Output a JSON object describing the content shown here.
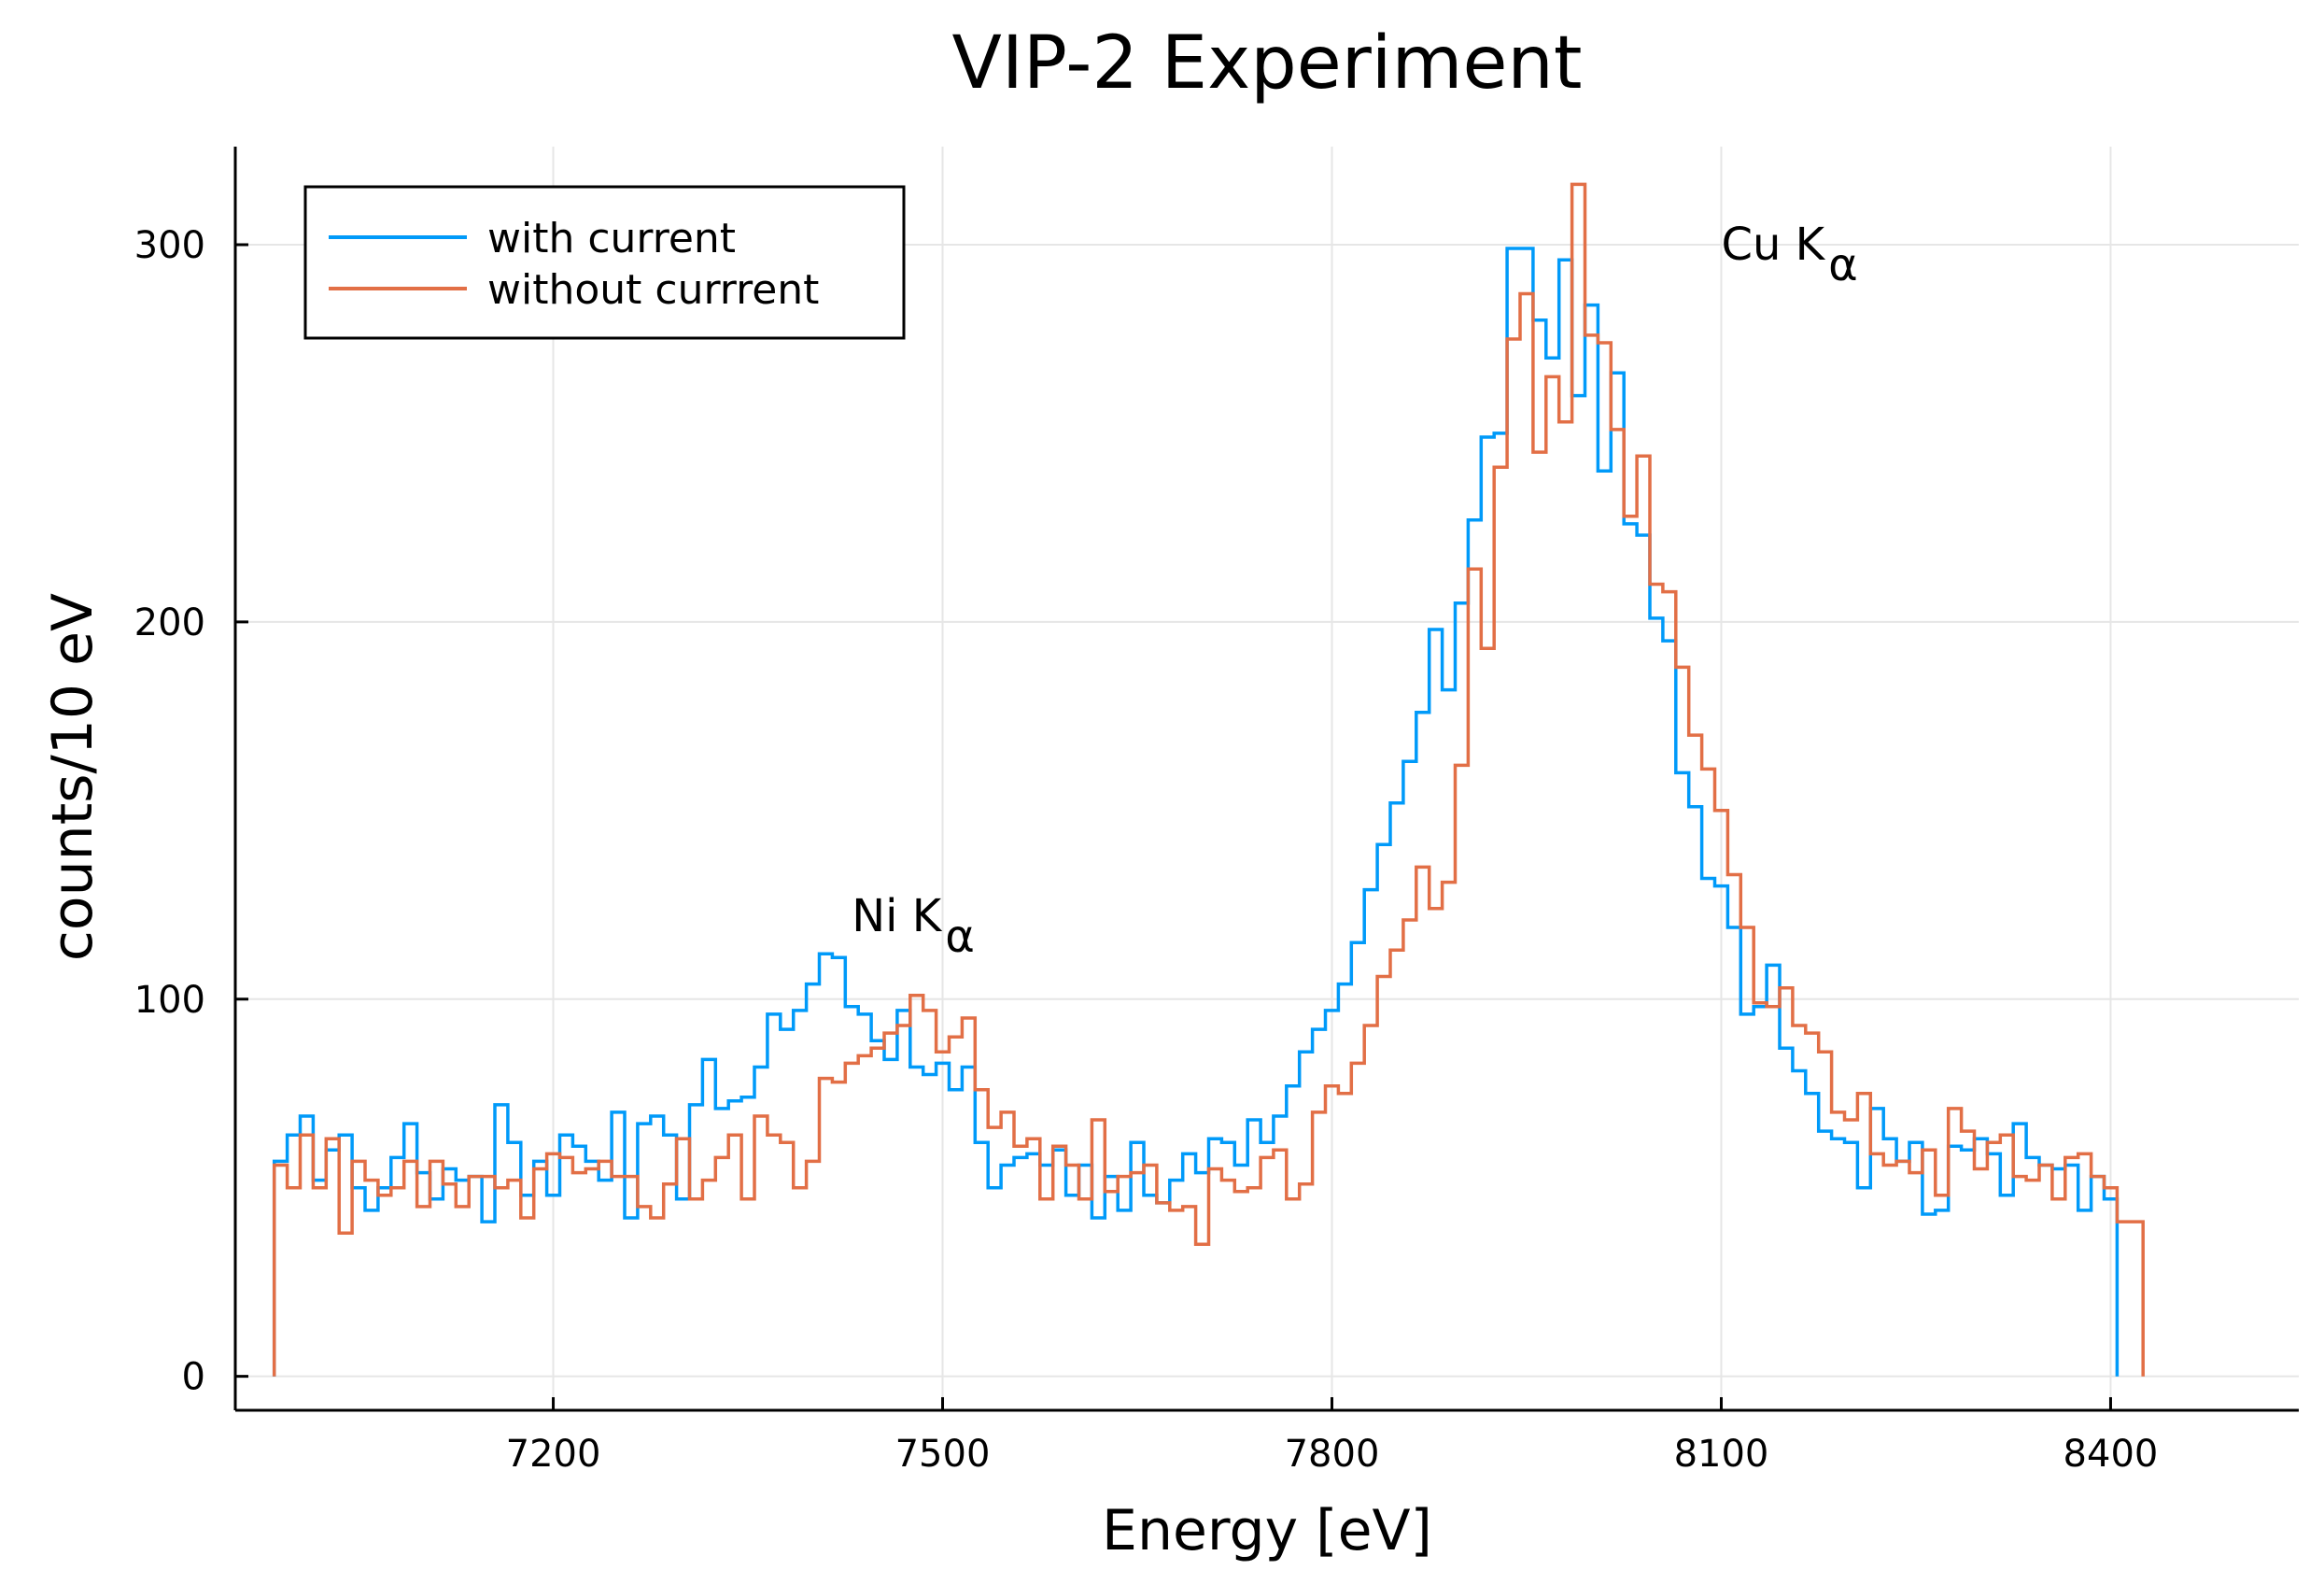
{
  "colors": {
    "with_current": "#009af9",
    "without_current": "#e26f46",
    "grid": "#e6e6e6",
    "axis": "#000000"
  },
  "chart_data": {
    "type": "line",
    "style": "step-histogram",
    "title": "VIP-2 Experiment",
    "xlabel": "Energy [eV]",
    "ylabel": "counts/10 eV",
    "xlim": [
      6955,
      8545
    ],
    "ylim": [
      -9,
      326
    ],
    "bin_start": 6985,
    "bin_width": 10,
    "x_ticks": [
      7200,
      7500,
      7800,
      8100,
      8400
    ],
    "x_tick_labels": [
      "7200",
      "7500",
      "7800",
      "8100",
      "8400"
    ],
    "y_ticks": [
      0,
      100,
      200,
      300
    ],
    "y_tick_labels": [
      "0",
      "100",
      "200",
      "300"
    ],
    "grid": true,
    "legend_position": "top-left",
    "legend": [
      "with current",
      "without currrent"
    ],
    "annotations": [
      {
        "text": "Ni K",
        "subscript": "α",
        "x": 7430,
        "y": 122
      },
      {
        "text": "Cu K",
        "subscript": "α",
        "x": 8100,
        "y": 300
      }
    ],
    "series": [
      {
        "name": "with current",
        "values": [
          57,
          64,
          69,
          52,
          60,
          64,
          50,
          44,
          50,
          58,
          67,
          54,
          47,
          55,
          52,
          53,
          41,
          72,
          62,
          48,
          57,
          48,
          64,
          61,
          57,
          52,
          70,
          42,
          67,
          69,
          64,
          47,
          72,
          84,
          71,
          73,
          74,
          82,
          96,
          92,
          97,
          104,
          112,
          111,
          98,
          96,
          89,
          84,
          97,
          82,
          80,
          83,
          76,
          82,
          62,
          50,
          56,
          58,
          59,
          56,
          60,
          48,
          56,
          42,
          53,
          44,
          62,
          48,
          46,
          52,
          59,
          54,
          63,
          62,
          56,
          68,
          62,
          69,
          77,
          86,
          92,
          97,
          104,
          115,
          129,
          141,
          152,
          163,
          176,
          198,
          182,
          205,
          227,
          249,
          250,
          299,
          299,
          280,
          270,
          296,
          260,
          284,
          240,
          266,
          226,
          223,
          201,
          195,
          160,
          151,
          132,
          130,
          119,
          96,
          98,
          109,
          87,
          81,
          75,
          65,
          63,
          62,
          50,
          71,
          63,
          57,
          62,
          43,
          44,
          61,
          60,
          63,
          59,
          48,
          67,
          58,
          56,
          55,
          56,
          44,
          53,
          47
        ],
        "x_start": 6985
      },
      {
        "name": "without currrent",
        "values": [
          56,
          50,
          64,
          50,
          63,
          38,
          57,
          52,
          48,
          50,
          57,
          45,
          57,
          51,
          45,
          53,
          53,
          50,
          52,
          42,
          55,
          59,
          58,
          54,
          55,
          57,
          53,
          53,
          45,
          42,
          51,
          63,
          47,
          52,
          58,
          64,
          47,
          69,
          64,
          62,
          50,
          57,
          79,
          78,
          83,
          85,
          87,
          91,
          93,
          101,
          97,
          86,
          90,
          95,
          76,
          66,
          70,
          61,
          63,
          47,
          61,
          56,
          47,
          68,
          49,
          53,
          54,
          56,
          46,
          44,
          45,
          35,
          55,
          52,
          49,
          50,
          58,
          60,
          47,
          51,
          70,
          77,
          75,
          83,
          93,
          106,
          113,
          121,
          135,
          124,
          131,
          162,
          214,
          193,
          241,
          275,
          287,
          245,
          265,
          253,
          316,
          276,
          274,
          251,
          228,
          244,
          210,
          208,
          188,
          170,
          161,
          150,
          133,
          119,
          99,
          98,
          103,
          93,
          91,
          86,
          70,
          68,
          75,
          59,
          56,
          57,
          54,
          60,
          48,
          71,
          65,
          55,
          62,
          64,
          53,
          52,
          56,
          47,
          58,
          59,
          53,
          50,
          41,
          41
        ]
      }
    ]
  }
}
